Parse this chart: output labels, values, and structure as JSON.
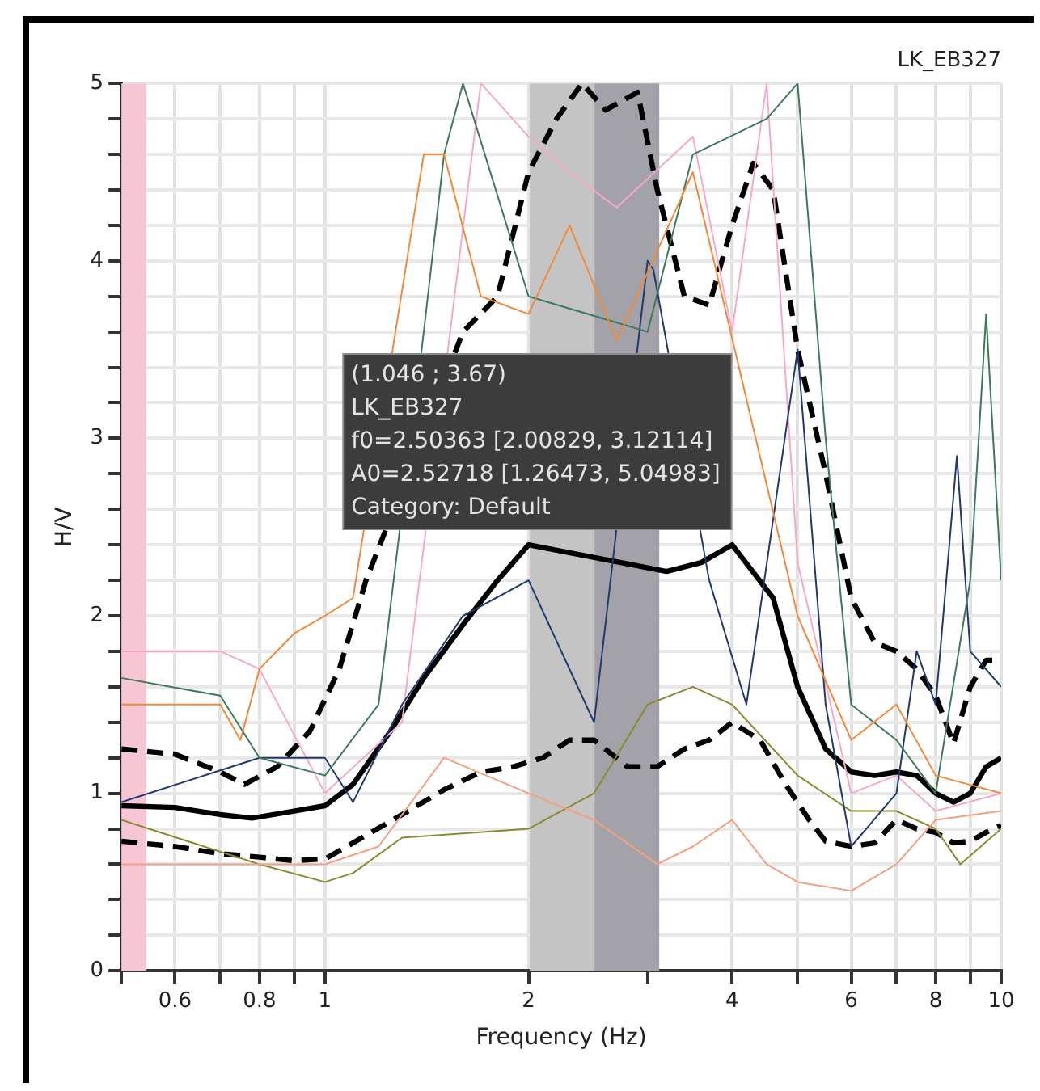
{
  "chart_data": {
    "type": "line",
    "title": "LK_EB327",
    "xlabel": "Frequency (Hz)",
    "ylabel": "H/V",
    "log": "x",
    "grid": true,
    "legend": false,
    "marker": "none",
    "xlim": [
      0.5,
      10
    ],
    "xticks": [
      {
        "value": 0.5,
        "label": null
      },
      0.6,
      {
        "value": 0.7,
        "label": null
      },
      0.8,
      {
        "value": 0.9,
        "label": null
      },
      1,
      2,
      {
        "value": 3,
        "label": null
      },
      4,
      {
        "value": 5,
        "label": null
      },
      6,
      {
        "value": 7,
        "label": null
      },
      8,
      {
        "value": 9,
        "label": null
      },
      10
    ],
    "ylim": [
      0,
      5
    ],
    "yticks": [
      0,
      {
        "value": 0.2,
        "label": null
      },
      {
        "value": 0.4,
        "label": null
      },
      {
        "value": 0.6,
        "label": null
      },
      {
        "value": 0.8,
        "label": null
      },
      1,
      {
        "value": 1.2,
        "label": null
      },
      {
        "value": 1.4,
        "label": null
      },
      {
        "value": 1.6,
        "label": null
      },
      {
        "value": 1.8,
        "label": null
      },
      2,
      {
        "value": 2.2,
        "label": null
      },
      {
        "value": 2.4,
        "label": null
      },
      {
        "value": 2.6,
        "label": null
      },
      {
        "value": 2.8,
        "label": null
      },
      3,
      {
        "value": 3.2,
        "label": null
      },
      {
        "value": 3.4,
        "label": null
      },
      {
        "value": 3.6,
        "label": null
      },
      {
        "value": 3.8,
        "label": null
      },
      4,
      {
        "value": 4.2,
        "label": null
      },
      {
        "value": 4.4,
        "label": null
      },
      {
        "value": 4.6,
        "label": null
      },
      {
        "value": 4.8,
        "label": null
      },
      5
    ],
    "bands": [
      {
        "axis": "x",
        "from": 0.5,
        "to": 0.544,
        "color": "#f6c6d4"
      },
      {
        "axis": "x",
        "from": 2.00829,
        "to": 2.50363,
        "color": "#c4c4c4"
      },
      {
        "axis": "x",
        "from": 2.50363,
        "to": 3.12114,
        "color": "#a2a2a8"
      }
    ],
    "annotations": [
      "(1.046 ; 3.67)",
      "LK_EB327",
      "f0=2.50363 [2.00829, 3.12114]",
      "A0=2.52718 [1.26473, 5.04983]",
      "Category: Default"
    ],
    "series": [
      {
        "color": "#f08a3c",
        "x": [
          0.5,
          0.7,
          0.75,
          0.8,
          0.9,
          1.0,
          1.1,
          1.2,
          1.3,
          1.4,
          1.5,
          1.7,
          1.8,
          2.0,
          2.3,
          2.7,
          3.0,
          3.5,
          4.0,
          4.5,
          5.0,
          6.0,
          7.0,
          8.0,
          10
        ],
        "values": [
          1.5,
          1.5,
          1.3,
          1.7,
          1.9,
          2.0,
          2.1,
          null,
          null,
          4.6,
          4.6,
          3.8,
          null,
          3.7,
          4.2,
          3.55,
          null,
          4.5,
          null,
          null,
          2.0,
          1.3,
          1.5,
          1.1,
          1.0
        ]
      },
      {
        "color": "#3c7a5a",
        "x": [
          0.5,
          0.7,
          0.8,
          1.0,
          1.2,
          1.3,
          1.4,
          1.5,
          1.6,
          2.0,
          2.5,
          3.0,
          3.5,
          4.0,
          4.5,
          5.0,
          5.5,
          6.0,
          7.0,
          8.0,
          9.0,
          9.5,
          10
        ],
        "values": [
          1.65,
          1.55,
          1.2,
          1.1,
          1.5,
          null,
          3.6,
          4.6,
          5.0,
          3.8,
          null,
          3.6,
          4.6,
          null,
          4.8,
          5.0,
          3.0,
          1.5,
          1.3,
          1.0,
          2.2,
          3.7,
          2.2
        ]
      },
      {
        "color": "#1f3a6e",
        "x": [
          0.5,
          0.8,
          1.0,
          1.1,
          1.3,
          1.6,
          2.0,
          2.5,
          2.8,
          3.0,
          3.06,
          3.3,
          3.7,
          4.2,
          4.8,
          5.0,
          5.5,
          6.0,
          7.0,
          7.5,
          8.0,
          8.6,
          9.0,
          10
        ],
        "values": [
          0.95,
          1.2,
          1.2,
          0.95,
          1.5,
          2.0,
          2.2,
          1.4,
          null,
          4.0,
          3.95,
          null,
          2.2,
          1.5,
          null,
          3.5,
          1.5,
          0.7,
          1.0,
          1.8,
          1.5,
          2.9,
          1.8,
          1.6
        ]
      },
      {
        "color": "#f6a8cc",
        "x": [
          0.5,
          0.7,
          0.8,
          1.0,
          1.3,
          1.5,
          1.7,
          2.0,
          2.3,
          2.7,
          3.1,
          3.5,
          4.0,
          4.5,
          5.0,
          6.0,
          7.0,
          8.0,
          10
        ],
        "values": [
          1.8,
          1.8,
          1.7,
          1.0,
          1.4,
          null,
          5.0,
          4.7,
          4.5,
          4.3,
          null,
          4.7,
          3.6,
          5.0,
          2.3,
          1.0,
          1.1,
          0.9,
          1.0
        ]
      },
      {
        "color": "#f4a080",
        "x": [
          0.5,
          0.7,
          1.0,
          1.2,
          1.5,
          2.0,
          2.5,
          3.1,
          3.5,
          4.0,
          4.5,
          5.0,
          6.0,
          7.0,
          8.0,
          10
        ],
        "values": [
          0.6,
          0.6,
          0.6,
          0.7,
          1.2,
          1.0,
          0.85,
          0.6,
          0.7,
          0.85,
          0.6,
          0.5,
          0.45,
          0.6,
          0.85,
          0.9
        ]
      },
      {
        "color": "#8a8a30",
        "x": [
          0.5,
          0.8,
          1.0,
          1.1,
          1.3,
          2.0,
          2.5,
          3.0,
          3.5,
          4.0,
          5.0,
          6.0,
          7.0,
          8.0,
          8.7,
          10
        ],
        "values": [
          0.85,
          0.6,
          0.5,
          0.55,
          0.75,
          0.8,
          1.0,
          1.5,
          1.6,
          1.5,
          1.1,
          0.9,
          0.9,
          0.8,
          0.6,
          0.8
        ]
      },
      {
        "color": "#000000",
        "x": [
          0.5,
          0.6,
          0.7,
          0.78,
          0.9,
          1.0,
          1.1,
          1.25,
          1.4,
          1.6,
          1.8,
          2.0,
          2.2,
          2.5,
          2.8,
          3.2,
          3.6,
          4.0,
          4.3,
          4.6,
          5.0,
          5.5,
          6.0,
          6.5,
          7.0,
          7.5,
          8.0,
          8.5,
          9.0,
          9.5,
          10
        ],
        "values": [
          0.93,
          0.92,
          0.88,
          0.86,
          0.9,
          0.93,
          1.05,
          1.35,
          1.65,
          1.95,
          2.2,
          2.4,
          null,
          null,
          null,
          2.25,
          2.3,
          2.4,
          null,
          2.1,
          1.6,
          1.25,
          1.12,
          1.1,
          1.12,
          1.1,
          1.0,
          0.95,
          1.0,
          1.15,
          1.2
        ]
      },
      {
        "color": "#000000",
        "line_style": "dashed",
        "x": [
          0.5,
          0.6,
          0.7,
          0.76,
          0.85,
          0.95,
          1.05,
          1.15,
          1.25,
          1.4,
          1.6,
          1.8,
          2.0,
          2.2,
          2.4,
          2.6,
          2.9,
          3.1,
          3.4,
          3.7,
          4.0,
          4.3,
          4.6,
          5.0,
          5.5,
          6.0,
          6.5,
          7.0,
          7.5,
          8.0,
          8.5,
          9.0,
          9.5,
          10
        ],
        "values": [
          1.25,
          1.22,
          1.12,
          1.05,
          1.15,
          1.35,
          1.7,
          2.2,
          null,
          null,
          3.6,
          3.8,
          4.5,
          4.8,
          5.0,
          4.85,
          4.95,
          4.4,
          3.8,
          3.75,
          4.2,
          4.55,
          4.4,
          3.5,
          2.8,
          2.1,
          1.85,
          1.8,
          1.7,
          1.55,
          1.28,
          1.6,
          1.75,
          1.75
        ]
      },
      {
        "color": "#000000",
        "line_style": "dashed",
        "x": [
          0.5,
          0.6,
          0.7,
          0.8,
          0.9,
          1.0,
          1.1,
          1.3,
          1.5,
          1.7,
          1.9,
          2.1,
          2.3,
          2.5,
          2.8,
          3.1,
          3.4,
          3.7,
          4.0,
          4.4,
          4.8,
          5.2,
          5.5,
          6.0,
          6.5,
          7.0,
          7.5,
          8.0,
          8.5,
          9.0,
          9.5,
          10
        ],
        "values": [
          0.73,
          0.7,
          0.66,
          0.64,
          0.62,
          0.63,
          0.72,
          0.88,
          1.02,
          1.12,
          1.15,
          1.2,
          1.3,
          1.3,
          1.15,
          1.15,
          1.25,
          1.3,
          1.4,
          1.3,
          1.05,
          0.85,
          0.73,
          0.7,
          0.72,
          0.85,
          0.8,
          0.78,
          0.72,
          0.73,
          0.78,
          0.82
        ]
      }
    ]
  }
}
